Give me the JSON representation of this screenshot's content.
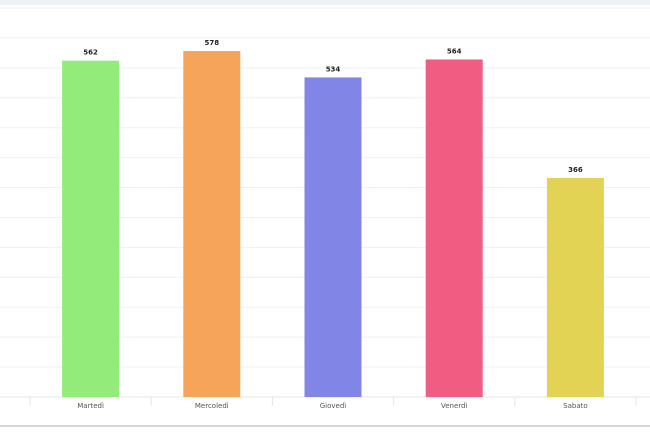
{
  "chart_data": {
    "type": "bar",
    "categories": [
      "Martedì",
      "Mercoledì",
      "Giovedì",
      "Venerdì",
      "Sabato"
    ],
    "values": [
      562,
      578,
      534,
      564,
      366
    ],
    "colors": [
      "#93eb7a",
      "#f5a45a",
      "#8186e6",
      "#f05c82",
      "#e3d355"
    ],
    "data_labels": [
      "562",
      "578",
      "534",
      "564",
      "366"
    ],
    "title": "",
    "xlabel": "",
    "ylabel": "",
    "ylim": [
      0,
      650
    ],
    "grid": true,
    "legend": "none"
  }
}
